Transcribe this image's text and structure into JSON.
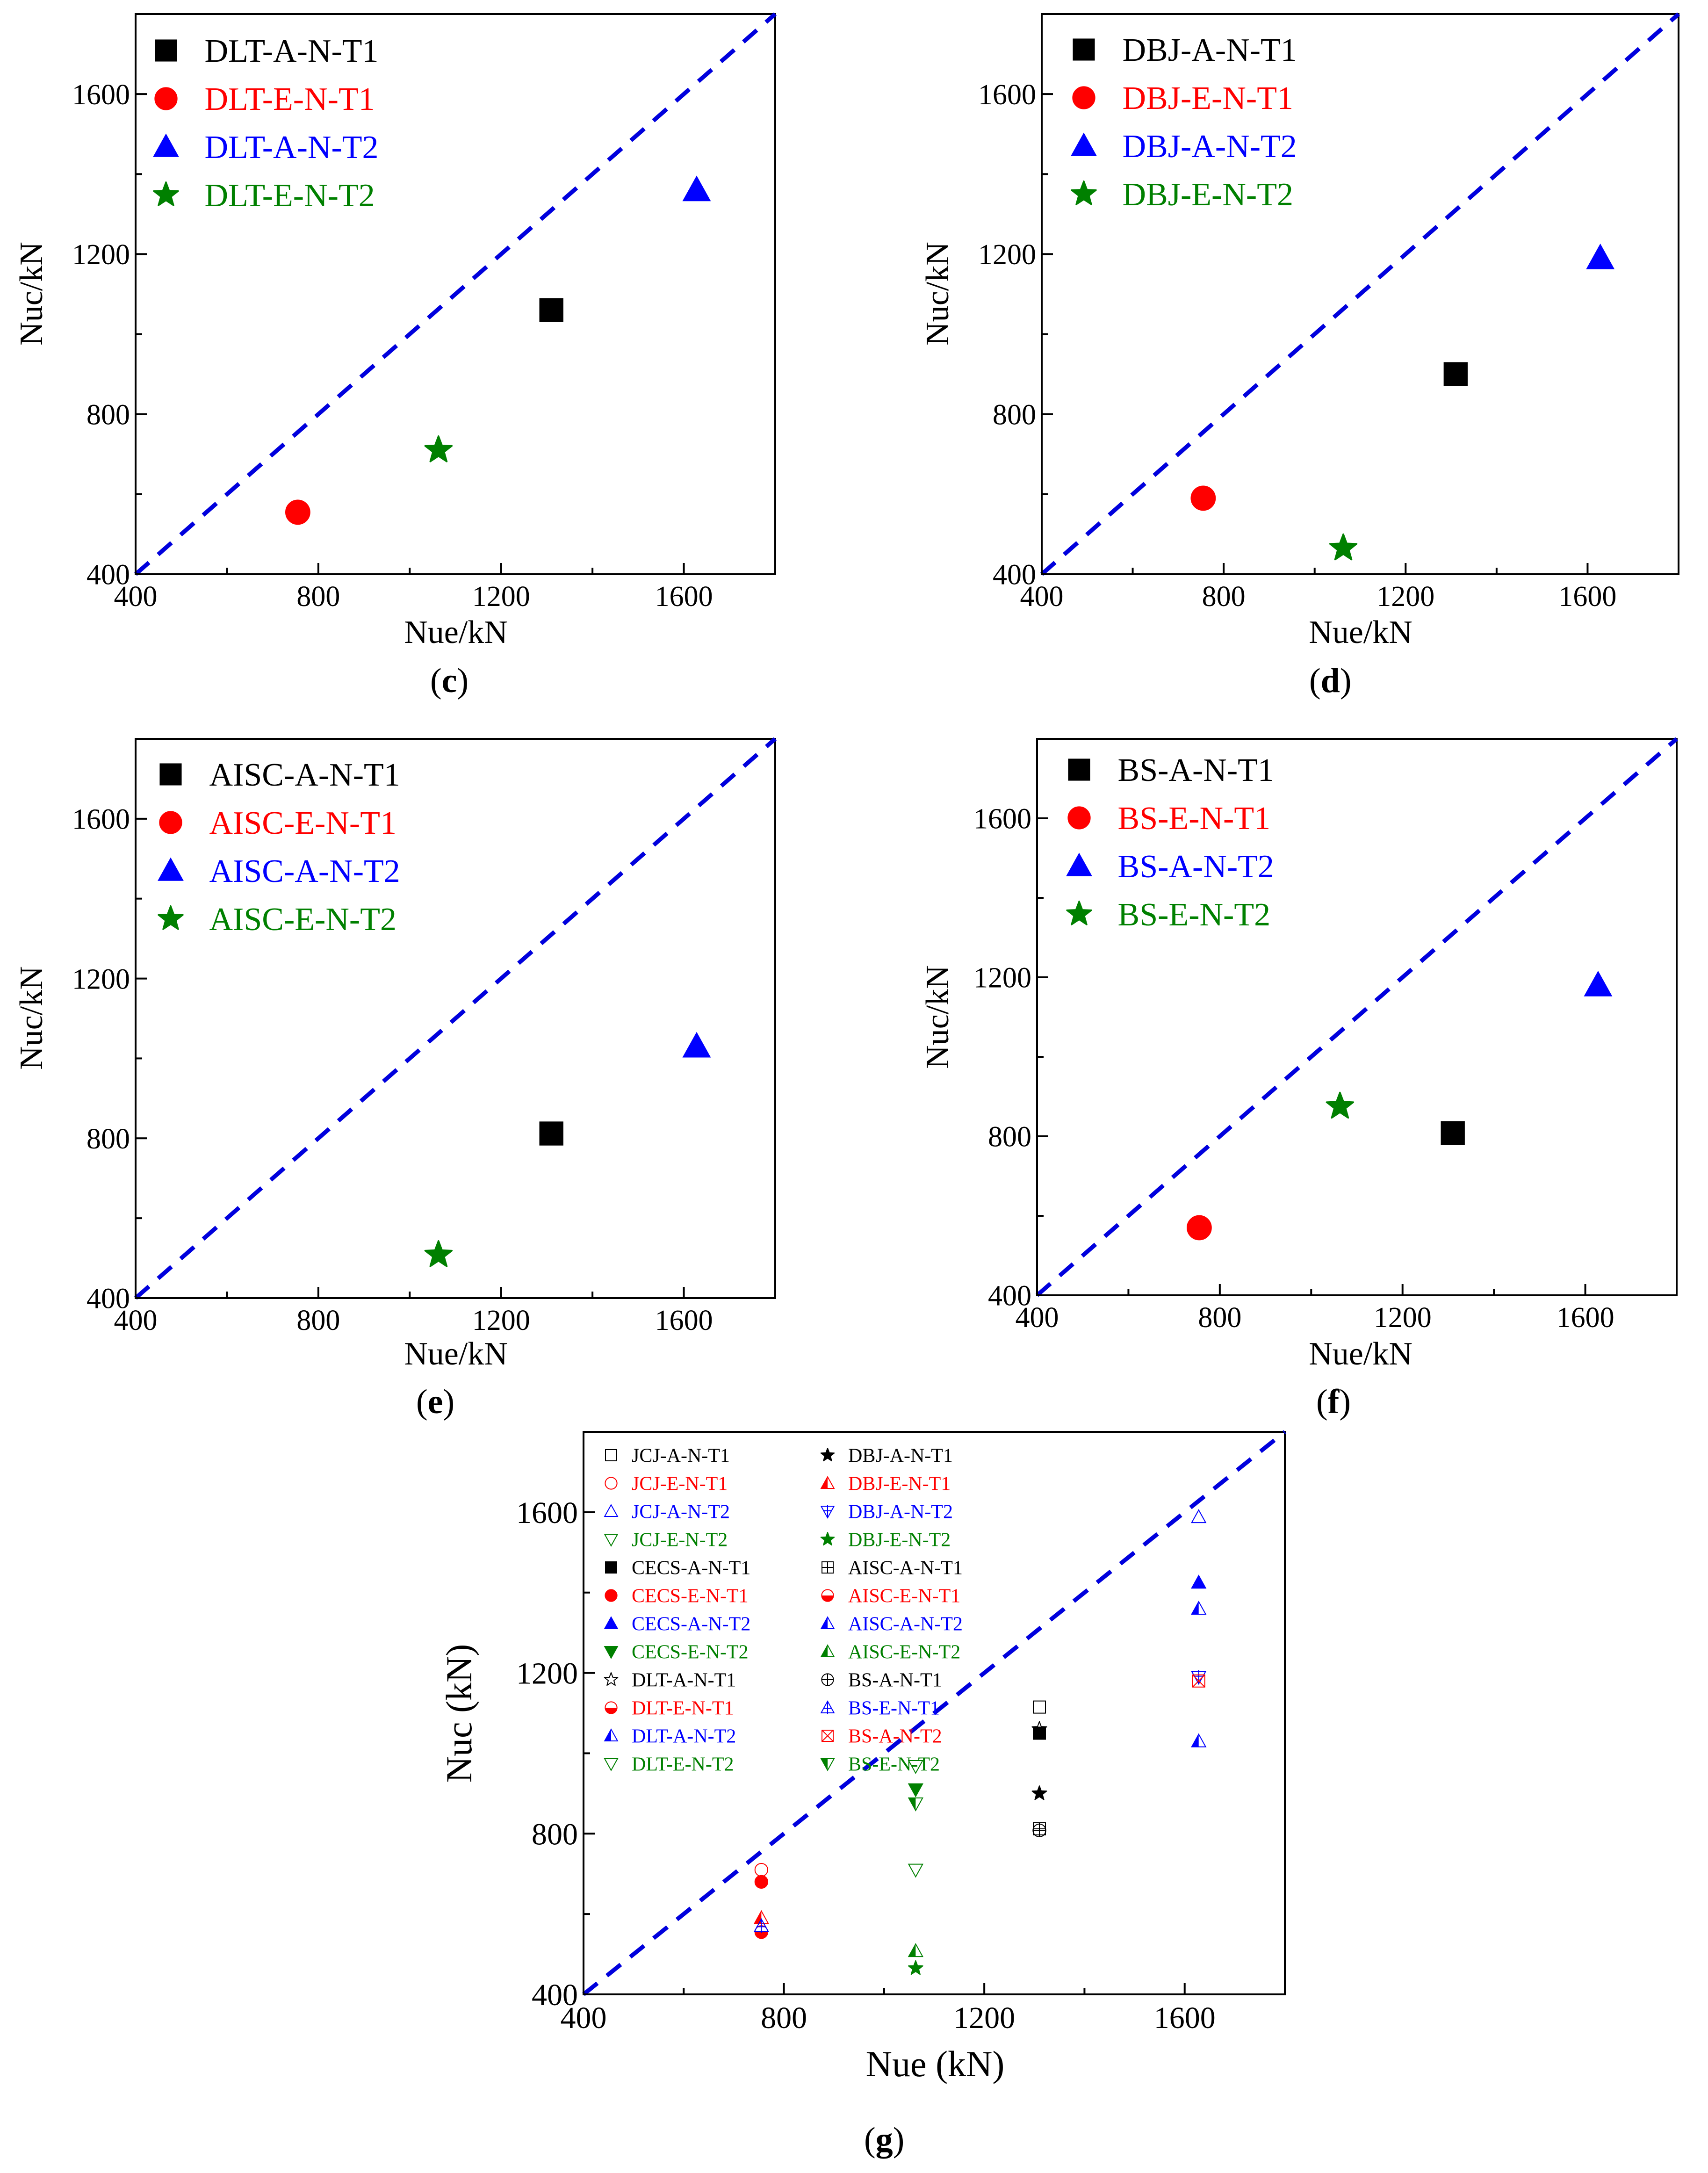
{
  "colors": {
    "black": "#000000",
    "red": "#ff0000",
    "blue": "#0000ff",
    "green": "#008000",
    "refline": "#0000dd"
  },
  "chart_data": [
    {
      "id": "c",
      "type": "scatter",
      "caption": "c",
      "xlabel": "Nue/kN",
      "ylabel": "Nuc/kN",
      "xlim": [
        400,
        1800
      ],
      "ylim": [
        400,
        1800
      ],
      "xticks": [
        400,
        800,
        1200,
        1600
      ],
      "yticks": [
        400,
        800,
        1200,
        1600
      ],
      "reference_line": "y = x",
      "series": [
        {
          "name": "DLT-A-N-T1",
          "color": "black",
          "marker": "square-filled",
          "x": [
            1310
          ],
          "y": [
            1060
          ]
        },
        {
          "name": "DLT-E-N-T1",
          "color": "red",
          "marker": "circle-filled",
          "x": [
            755
          ],
          "y": [
            555
          ]
        },
        {
          "name": "DLT-A-N-T2",
          "color": "blue",
          "marker": "triangle-filled",
          "x": [
            1628
          ],
          "y": [
            1360
          ]
        },
        {
          "name": "DLT-E-N-T2",
          "color": "green",
          "marker": "star-filled",
          "x": [
            1063
          ],
          "y": [
            710
          ]
        }
      ]
    },
    {
      "id": "d",
      "type": "scatter",
      "caption": "d",
      "xlabel": "Nue/kN",
      "ylabel": "Nuc/kN",
      "xlim": [
        400,
        1800
      ],
      "ylim": [
        400,
        1800
      ],
      "xticks": [
        400,
        800,
        1200,
        1600
      ],
      "yticks": [
        400,
        800,
        1200,
        1600
      ],
      "reference_line": "y = x",
      "series": [
        {
          "name": "DBJ-A-N-T1",
          "color": "black",
          "marker": "square-filled",
          "x": [
            1310
          ],
          "y": [
            900
          ]
        },
        {
          "name": "DBJ-E-N-T1",
          "color": "red",
          "marker": "circle-filled",
          "x": [
            755
          ],
          "y": [
            590
          ]
        },
        {
          "name": "DBJ-A-N-T2",
          "color": "blue",
          "marker": "triangle-filled",
          "x": [
            1628
          ],
          "y": [
            1190
          ]
        },
        {
          "name": "DBJ-E-N-T2",
          "color": "green",
          "marker": "star-filled",
          "x": [
            1063
          ],
          "y": [
            465
          ]
        }
      ]
    },
    {
      "id": "e",
      "type": "scatter",
      "caption": "e",
      "xlabel": "Nue/kN",
      "ylabel": "Nuc/kN",
      "xlim": [
        400,
        1800
      ],
      "ylim": [
        400,
        1800
      ],
      "xticks": [
        400,
        800,
        1200,
        1600
      ],
      "yticks": [
        400,
        800,
        1200,
        1600
      ],
      "reference_line": "y = x",
      "series": [
        {
          "name": "AISC-A-N-T1",
          "color": "black",
          "marker": "square-filled",
          "x": [
            1310
          ],
          "y": [
            812
          ]
        },
        {
          "name": "AISC-E-N-T1",
          "color": "red",
          "marker": "circle-filled",
          "x": [],
          "y": []
        },
        {
          "name": "AISC-A-N-T2",
          "color": "blue",
          "marker": "triangle-filled",
          "x": [
            1628
          ],
          "y": [
            1030
          ]
        },
        {
          "name": "AISC-E-N-T2",
          "color": "green",
          "marker": "star-filled",
          "x": [
            1063
          ],
          "y": [
            508
          ]
        }
      ]
    },
    {
      "id": "f",
      "type": "scatter",
      "caption": "f",
      "xlabel": "Nue/kN",
      "ylabel": "Nuc/kN",
      "xlim": [
        400,
        1800
      ],
      "ylim": [
        400,
        1800
      ],
      "xticks": [
        400,
        800,
        1200,
        1600
      ],
      "yticks": [
        400,
        800,
        1200,
        1600
      ],
      "reference_line": "y = x",
      "series": [
        {
          "name": "BS-A-N-T1",
          "color": "black",
          "marker": "square-filled",
          "x": [
            1310
          ],
          "y": [
            808
          ]
        },
        {
          "name": "BS-E-N-T1",
          "color": "red",
          "marker": "circle-filled",
          "x": [
            755
          ],
          "y": [
            570
          ]
        },
        {
          "name": "BS-A-N-T2",
          "color": "blue",
          "marker": "triangle-filled",
          "x": [
            1628
          ],
          "y": [
            1180
          ]
        },
        {
          "name": "BS-E-N-T2",
          "color": "green",
          "marker": "star-filled",
          "x": [
            1063
          ],
          "y": [
            875
          ]
        }
      ]
    },
    {
      "id": "g",
      "type": "scatter",
      "caption": "g",
      "xlabel": "Nue (kN)",
      "ylabel": "Nuc (kN)",
      "xlim": [
        400,
        1800
      ],
      "ylim": [
        400,
        1800
      ],
      "xticks": [
        400,
        800,
        1200,
        1600
      ],
      "yticks": [
        400,
        800,
        1200,
        1600
      ],
      "reference_line": "y = x",
      "series": [
        {
          "name": "JCJ-A-N-T1",
          "color": "black",
          "marker": "square-open",
          "x": [
            1310
          ],
          "y": [
            1115
          ]
        },
        {
          "name": "JCJ-E-N-T1",
          "color": "red",
          "marker": "circle-open",
          "x": [
            755
          ],
          "y": [
            710
          ]
        },
        {
          "name": "JCJ-A-N-T2",
          "color": "blue",
          "marker": "triangle-open",
          "x": [
            1628
          ],
          "y": [
            1588
          ]
        },
        {
          "name": "JCJ-E-N-T2",
          "color": "green",
          "marker": "triangle-down-open",
          "x": [
            1063
          ],
          "y": [
            968
          ]
        },
        {
          "name": "CECS-A-N-T1",
          "color": "black",
          "marker": "square-filled",
          "x": [
            1310
          ],
          "y": [
            1050
          ]
        },
        {
          "name": "CECS-E-N-T1",
          "color": "red",
          "marker": "circle-filled",
          "x": [
            755
          ],
          "y": [
            680
          ]
        },
        {
          "name": "CECS-A-N-T2",
          "color": "blue",
          "marker": "triangle-filled",
          "x": [
            1628
          ],
          "y": [
            1425
          ]
        },
        {
          "name": "CECS-E-N-T2",
          "color": "green",
          "marker": "triangle-down-filled",
          "x": [
            1063
          ],
          "y": [
            910
          ]
        },
        {
          "name": "DLT-A-N-T1",
          "color": "black",
          "marker": "star-open",
          "x": [
            1310
          ],
          "y": [
            1060
          ]
        },
        {
          "name": "DLT-E-N-T1",
          "color": "red",
          "marker": "circle-half",
          "x": [
            755
          ],
          "y": [
            555
          ]
        },
        {
          "name": "DLT-A-N-T2",
          "color": "blue",
          "marker": "triangle-half",
          "x": [
            1628
          ],
          "y": [
            1360
          ]
        },
        {
          "name": "DLT-E-N-T2",
          "color": "green",
          "marker": "triangle-down-open",
          "x": [
            1063
          ],
          "y": [
            710
          ]
        },
        {
          "name": "DBJ-A-N-T1",
          "color": "black",
          "marker": "star-filled",
          "x": [
            1310
          ],
          "y": [
            900
          ]
        },
        {
          "name": "DBJ-E-N-T1",
          "color": "red",
          "marker": "triangle-half",
          "x": [
            755
          ],
          "y": [
            590
          ]
        },
        {
          "name": "DBJ-A-N-T2",
          "color": "blue",
          "marker": "triangle-down-cross",
          "x": [
            1628
          ],
          "y": [
            1190
          ]
        },
        {
          "name": "DBJ-E-N-T2",
          "color": "green",
          "marker": "star-filled",
          "x": [
            1063
          ],
          "y": [
            465
          ]
        },
        {
          "name": "AISC-A-N-T1",
          "color": "black",
          "marker": "square-cross",
          "x": [
            1310
          ],
          "y": [
            812
          ]
        },
        {
          "name": "AISC-E-N-T1",
          "color": "red",
          "marker": "circle-half",
          "x": [],
          "y": []
        },
        {
          "name": "AISC-A-N-T2",
          "color": "blue",
          "marker": "triangle-half",
          "x": [
            1628
          ],
          "y": [
            1030
          ]
        },
        {
          "name": "AISC-E-N-T2",
          "color": "green",
          "marker": "triangle-half",
          "x": [
            1063
          ],
          "y": [
            508
          ]
        },
        {
          "name": "BS-A-N-T1",
          "color": "black",
          "marker": "circle-cross",
          "x": [
            1310
          ],
          "y": [
            808
          ]
        },
        {
          "name": "BS-E-N-T1",
          "color": "blue",
          "marker": "triangle-cross",
          "x": [
            755
          ],
          "y": [
            570
          ]
        },
        {
          "name": "BS-A-N-T2",
          "color": "red",
          "marker": "square-x",
          "x": [
            1628
          ],
          "y": [
            1180
          ]
        },
        {
          "name": "BS-E-N-T2",
          "color": "green",
          "marker": "triangle-down-half",
          "x": [
            1063
          ],
          "y": [
            875
          ]
        }
      ]
    }
  ]
}
